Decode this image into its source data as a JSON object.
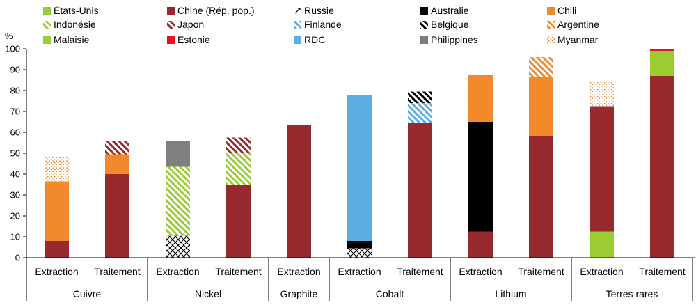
{
  "chart_data": {
    "type": "bar",
    "stacked": true,
    "y_unit": "%",
    "ylim": [
      0,
      100
    ],
    "yticks": [
      0,
      10,
      20,
      30,
      40,
      50,
      60,
      70,
      80,
      90,
      100
    ],
    "grid": false,
    "legend_position": "top",
    "groups": [
      {
        "label": "Cuivre",
        "bars": [
          "Extraction",
          "Traitement"
        ]
      },
      {
        "label": "Nickel",
        "bars": [
          "Extraction",
          "Traitement"
        ]
      },
      {
        "label": "Graphite",
        "bars": [
          "Extraction"
        ]
      },
      {
        "label": "Cobalt",
        "bars": [
          "Extraction",
          "Traitement"
        ]
      },
      {
        "label": "Lithium",
        "bars": [
          "Extraction",
          "Traitement"
        ]
      },
      {
        "label": "Terres rares",
        "bars": [
          "Extraction",
          "Traitement"
        ]
      }
    ],
    "series": [
      {
        "name": "États-Unis",
        "color": "#9ACD32",
        "pattern": "solid"
      },
      {
        "name": "Chine (Rép. pop.)",
        "color": "#962A2F",
        "pattern": "solid"
      },
      {
        "name": "Russie",
        "color": "#000000",
        "pattern": "dash"
      },
      {
        "name": "Australie",
        "color": "#000000",
        "pattern": "solid"
      },
      {
        "name": "Chili",
        "color": "#F28A2C",
        "pattern": "solid"
      },
      {
        "name": "Indonésie",
        "color": "#9ACD32",
        "pattern": "diagonal"
      },
      {
        "name": "Japon",
        "color": "#962A2F",
        "pattern": "diagonal"
      },
      {
        "name": "Finlande",
        "color": "#5DADE2",
        "pattern": "diagonal"
      },
      {
        "name": "Belgique",
        "color": "#000000",
        "pattern": "diagonal"
      },
      {
        "name": "Argentine",
        "color": "#F28A2C",
        "pattern": "diagonal"
      },
      {
        "name": "Malaisie",
        "color": "#9ACD32",
        "pattern": "solid"
      },
      {
        "name": "Estonie",
        "color": "#E8101A",
        "pattern": "solid"
      },
      {
        "name": "RDC",
        "color": "#5DADE2",
        "pattern": "solid"
      },
      {
        "name": "Philippines",
        "color": "#7F7F7F",
        "pattern": "solid"
      },
      {
        "name": "Myanmar",
        "color": "#F28A2C",
        "pattern": "dots"
      }
    ],
    "crosshatch_color": "#000000",
    "bars": [
      {
        "group": "Cuivre",
        "label": "Extraction",
        "segments": [
          {
            "series": "Chine (Rép. pop.)",
            "value": 8
          },
          {
            "series": "Chili",
            "value": 28.5
          },
          {
            "series": "Myanmar",
            "value": 12
          }
        ]
      },
      {
        "group": "Cuivre",
        "label": "Traitement",
        "segments": [
          {
            "series": "Chine (Rép. pop.)",
            "value": 40
          },
          {
            "series": "Chili",
            "value": 9.5
          },
          {
            "series": "Japon",
            "value": 6.5
          }
        ]
      },
      {
        "group": "Nickel",
        "label": "Extraction",
        "segments": [
          {
            "series": "Russie",
            "value": 10.5,
            "pattern_override": "crosshatch"
          },
          {
            "series": "Indonésie",
            "value": 33
          },
          {
            "series": "Philippines",
            "value": 12.5
          }
        ]
      },
      {
        "group": "Nickel",
        "label": "Traitement",
        "segments": [
          {
            "series": "Chine (Rép. pop.)",
            "value": 35
          },
          {
            "series": "Indonésie",
            "value": 15
          },
          {
            "series": "Japon",
            "value": 7.5
          }
        ]
      },
      {
        "group": "Graphite",
        "label": "Extraction",
        "segments": [
          {
            "series": "Chine (Rép. pop.)",
            "value": 63.5
          }
        ]
      },
      {
        "group": "Cobalt",
        "label": "Extraction",
        "segments": [
          {
            "series": "Russie",
            "value": 4.5,
            "pattern_override": "crosshatch"
          },
          {
            "series": "Australie",
            "value": 3.5
          },
          {
            "series": "RDC",
            "value": 70
          }
        ]
      },
      {
        "group": "Cobalt",
        "label": "Traitement",
        "segments": [
          {
            "series": "Chine (Rép. pop.)",
            "value": 64.5
          },
          {
            "series": "Finlande",
            "value": 9.5
          },
          {
            "series": "Belgique",
            "value": 5.5
          }
        ]
      },
      {
        "group": "Lithium",
        "label": "Extraction",
        "segments": [
          {
            "series": "Chine (Rép. pop.)",
            "value": 12.5
          },
          {
            "series": "Australie",
            "value": 52.5
          },
          {
            "series": "Chili",
            "value": 22.5
          }
        ]
      },
      {
        "group": "Lithium",
        "label": "Traitement",
        "segments": [
          {
            "series": "Chine (Rép. pop.)",
            "value": 58
          },
          {
            "series": "Chili",
            "value": 28.5
          },
          {
            "series": "Argentine",
            "value": 9.5
          }
        ]
      },
      {
        "group": "Terres rares",
        "label": "Extraction",
        "segments": [
          {
            "series": "États-Unis",
            "value": 12.5
          },
          {
            "series": "Chine (Rép. pop.)",
            "value": 60
          },
          {
            "series": "Myanmar",
            "value": 11.5
          }
        ]
      },
      {
        "group": "Terres rares",
        "label": "Traitement",
        "segments": [
          {
            "series": "Chine (Rép. pop.)",
            "value": 87
          },
          {
            "series": "Malaisie",
            "value": 12
          },
          {
            "series": "Estonie",
            "value": 1
          }
        ]
      }
    ]
  }
}
